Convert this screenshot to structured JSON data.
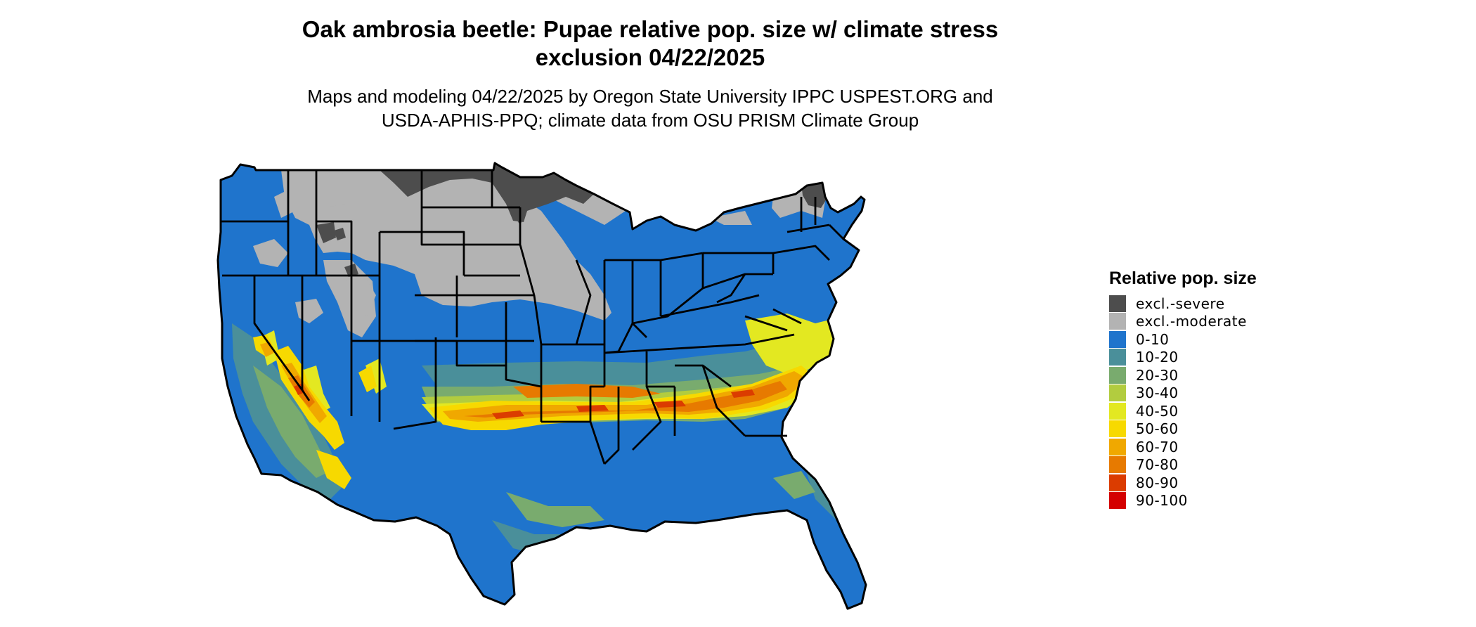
{
  "title_line1": "Oak ambrosia beetle: Pupae relative pop. size w/ climate stress",
  "title_line2": "exclusion 04/22/2025",
  "subtitle_line1": "Maps and modeling 04/22/2025 by Oregon State University IPPC USPEST.ORG and",
  "subtitle_line2": "USDA-APHIS-PPQ; climate data from OSU PRISM Climate Group",
  "legend": {
    "title": "Relative pop. size",
    "items": [
      {
        "label": "excl.-severe",
        "color": "#4d4d4d"
      },
      {
        "label": "excl.-moderate",
        "color": "#b3b3b3"
      },
      {
        "label": "0-10",
        "color": "#1f74cc"
      },
      {
        "label": "10-20",
        "color": "#4a8f9a"
      },
      {
        "label": "20-30",
        "color": "#79ab6e"
      },
      {
        "label": "30-40",
        "color": "#b2cc3f"
      },
      {
        "label": "40-50",
        "color": "#e3e821"
      },
      {
        "label": "50-60",
        "color": "#f7d900"
      },
      {
        "label": "60-70",
        "color": "#f0a800"
      },
      {
        "label": "70-80",
        "color": "#e77a00"
      },
      {
        "label": "80-90",
        "color": "#db3c00"
      },
      {
        "label": "90-100",
        "color": "#d40000"
      }
    ]
  }
}
